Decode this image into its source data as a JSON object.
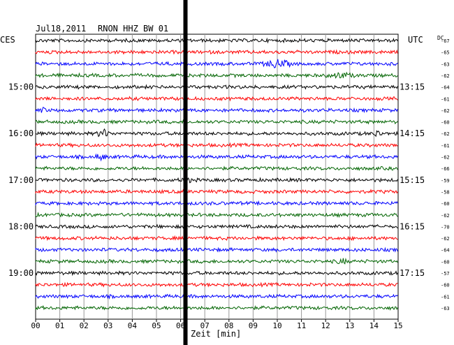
{
  "header": {
    "date": "Jul18,2011",
    "station": "RNON HHZ BW 01",
    "left_zone": "CES",
    "right_zone": "UTC",
    "dc_label": "DC"
  },
  "chart_data": {
    "type": "line",
    "title": "Jul18,2011   RNON HHZ BW 01",
    "xlabel": "Zeit [min]",
    "xlim": [
      0,
      15
    ],
    "x_ticks": [
      "00",
      "01",
      "02",
      "03",
      "04",
      "05",
      "06",
      "07",
      "08",
      "09",
      "10",
      "11",
      "12",
      "13",
      "14",
      "15"
    ],
    "rows": 24,
    "minutes_per_row": 15,
    "row_colors": [
      "#000000",
      "#ff0000",
      "#0000ff",
      "#006400"
    ],
    "left_time_labels": [
      {
        "row": 4,
        "label": "15:00"
      },
      {
        "row": 8,
        "label": "16:00"
      },
      {
        "row": 12,
        "label": "17:00"
      },
      {
        "row": 16,
        "label": "18:00"
      },
      {
        "row": 20,
        "label": "19:00"
      }
    ],
    "right_time_labels": [
      {
        "row": 4,
        "label": "13:15"
      },
      {
        "row": 8,
        "label": "14:15"
      },
      {
        "row": 12,
        "label": "15:15"
      },
      {
        "row": 16,
        "label": "16:15"
      },
      {
        "row": 20,
        "label": "17:15"
      }
    ],
    "dc_offsets": [
      "-67",
      "-65",
      "-63",
      "-62",
      "-64",
      "-61",
      "-62",
      "-60",
      "-62",
      "-61",
      "-62",
      "-66",
      "-59",
      "-58",
      "-60",
      "-62",
      "-70",
      "-62",
      "-64",
      "-60",
      "-57",
      "-60",
      "-61",
      "-63"
    ],
    "event_marker_minute": 6.2,
    "grid": true
  }
}
